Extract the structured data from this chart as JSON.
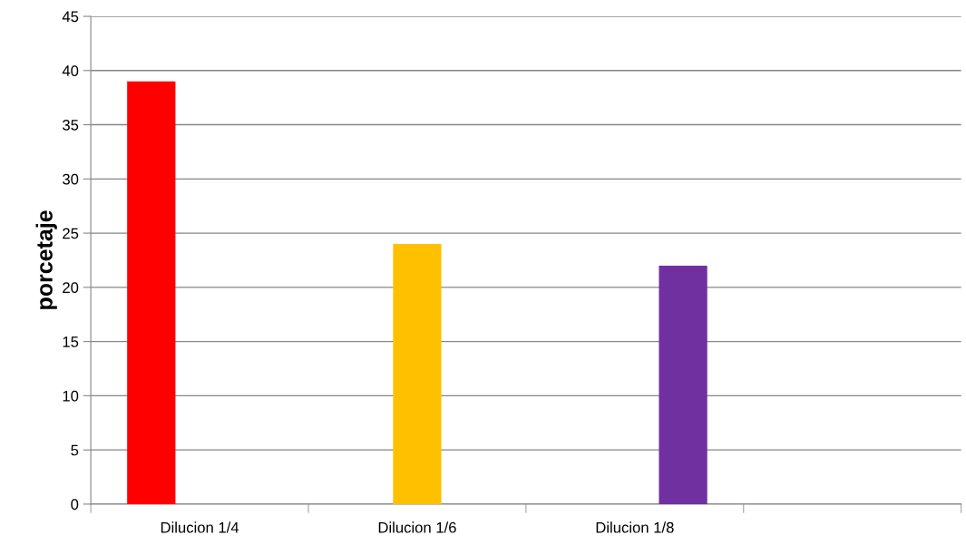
{
  "chart_data": {
    "type": "bar",
    "ylabel": "porcetaje",
    "categories": [
      "Dilucion 1/4",
      "Dilucion 1/6",
      "Dilucion 1/8",
      null
    ],
    "series": [
      {
        "color": "#ff0000",
        "values": [
          39,
          null,
          null,
          null
        ]
      },
      {
        "color": "#ffc000",
        "values": [
          null,
          24,
          null,
          null
        ]
      },
      {
        "color": "#7030a0",
        "values": [
          null,
          null,
          22,
          null
        ]
      }
    ],
    "ylim": [
      0,
      45
    ],
    "yticks": [
      0,
      5,
      10,
      15,
      20,
      25,
      30,
      35,
      40,
      45
    ],
    "grid": "y",
    "legend": false
  }
}
